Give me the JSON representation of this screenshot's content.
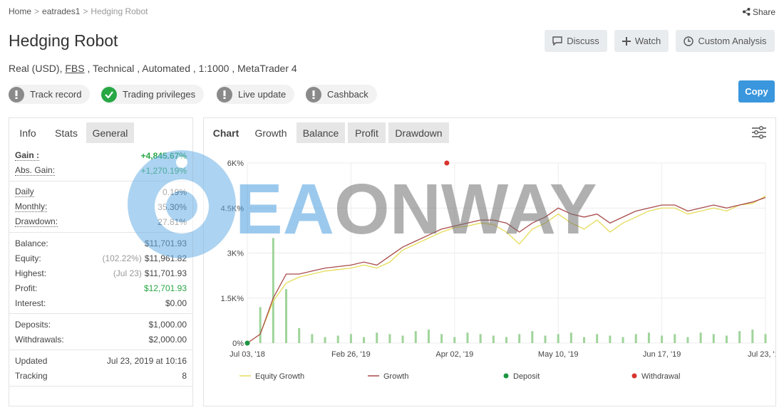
{
  "breadcrumb": {
    "items": [
      "Home",
      "eatrades1",
      "Hedging Robot"
    ],
    "separator": ">"
  },
  "share": "Share",
  "title": "Hedging Robot",
  "buttons": [
    "Discuss",
    "Watch",
    "Custom Analysis"
  ],
  "copy": "Copy",
  "account_info": {
    "prefix": "Real (USD),",
    "broker": "FBS",
    "suffix": ", Technical , Automated , 1:1000 , MetaTrader 4"
  },
  "badges": [
    {
      "label": "Track record",
      "ok": false
    },
    {
      "label": "Trading privileges",
      "ok": true
    },
    {
      "label": "Live update",
      "ok": false
    },
    {
      "label": "Cashback",
      "ok": false
    }
  ],
  "left_tabs": {
    "items": [
      "Info",
      "Stats",
      "General"
    ],
    "active": 1
  },
  "stats": [
    [
      {
        "label": "Gain :",
        "value": "+4,845.67%",
        "color": "#28a745",
        "bold": true
      },
      {
        "label": "Abs. Gain:",
        "value": "+1,270.19%",
        "color": "#28a745"
      }
    ],
    [
      {
        "label": "Daily",
        "value": "0.19%"
      },
      {
        "label": "Monthly:",
        "value": "35.30%"
      },
      {
        "label": "Drawdown:",
        "value": "27.81%"
      }
    ],
    [
      {
        "label": "Balance:",
        "value": "$11,701.93"
      },
      {
        "label": "Equity:",
        "note": "(102.22%)",
        "value": "$11,961.82"
      },
      {
        "label": "Highest:",
        "note": "(Jul 23)",
        "value": "$11,701.93"
      },
      {
        "label": "Profit:",
        "value": "$12,701.93",
        "color": "#28a745"
      },
      {
        "label": "Interest:",
        "value": "$0.00"
      }
    ],
    [
      {
        "label": "Deposits:",
        "value": "$1,000.00"
      },
      {
        "label": "Withdrawals:",
        "value": "$2,000.00"
      }
    ],
    [
      {
        "label": "Updated",
        "value": "Jul 23, 2019 at 10:16"
      },
      {
        "label": "Tracking",
        "value": "8"
      }
    ]
  ],
  "chart_label": "Chart",
  "chart_tabs": {
    "items": [
      "Growth",
      "Balance",
      "Profit",
      "Drawdown"
    ],
    "active": 0
  },
  "watermark": {
    "part1": "EA",
    "part2": "ONWAY"
  },
  "chart_data": {
    "type": "line",
    "x": [
      0,
      2.5,
      5,
      7.5,
      10,
      12.5,
      15,
      17.5,
      20,
      22.5,
      25,
      27.5,
      30,
      32.5,
      35,
      37.5,
      40,
      42.5,
      45,
      47.5,
      50,
      52.5,
      55,
      57.5,
      60,
      62.5,
      65,
      67.5,
      70,
      72.5,
      75,
      77.5,
      80,
      82.5,
      85,
      87.5,
      90,
      92.5,
      95,
      97.5,
      100
    ],
    "xlim": [
      0,
      100
    ],
    "xticks": [
      {
        "value": 0,
        "label": "Jul 03, '18"
      },
      {
        "value": 20,
        "label": "Feb 26, '19"
      },
      {
        "value": 40,
        "label": "Apr 02, '19"
      },
      {
        "value": 60,
        "label": "May 10, '19"
      },
      {
        "value": 80,
        "label": "Jun 17, '19"
      },
      {
        "value": 100,
        "label": "Jul 23, '19"
      }
    ],
    "ylim": [
      0,
      6000
    ],
    "yticks": [
      {
        "value": 0,
        "label": "0%"
      },
      {
        "value": 1500,
        "label": "1.5K%"
      },
      {
        "value": 3000,
        "label": "3K%"
      },
      {
        "value": 4500,
        "label": "4.5K%"
      },
      {
        "value": 6000,
        "label": "6K%"
      }
    ],
    "grid": true,
    "bars": {
      "color": "#9fd49a",
      "values": [
        0,
        1200,
        3500,
        1800,
        500,
        300,
        200,
        250,
        300,
        200,
        350,
        300,
        250,
        400,
        450,
        300,
        200,
        350,
        300,
        250,
        200,
        300,
        400,
        250,
        300,
        350,
        200,
        300,
        250,
        200,
        300,
        350,
        250,
        300,
        200,
        350,
        300,
        250,
        400,
        450,
        300
      ]
    },
    "series": [
      {
        "name": "Equity Growth",
        "color": "#e6dc5a",
        "values": [
          0,
          300,
          1400,
          2000,
          2200,
          2300,
          2400,
          2450,
          2500,
          2600,
          2500,
          2700,
          3100,
          3300,
          3500,
          3700,
          3850,
          3900,
          4000,
          3950,
          3700,
          3300,
          3800,
          4000,
          4300,
          4000,
          3800,
          4100,
          3700,
          4000,
          4200,
          4400,
          4500,
          4500,
          4300,
          4400,
          4500,
          4400,
          4600,
          4650,
          4900
        ]
      },
      {
        "name": "Growth",
        "color": "#a84b4b",
        "values": [
          0,
          300,
          1500,
          2300,
          2300,
          2400,
          2500,
          2550,
          2600,
          2700,
          2600,
          2900,
          3200,
          3400,
          3600,
          3800,
          3900,
          4000,
          4100,
          4100,
          4000,
          3700,
          4000,
          4200,
          4500,
          4300,
          4200,
          4300,
          4000,
          4200,
          4400,
          4500,
          4600,
          4600,
          4400,
          4500,
          4600,
          4500,
          4600,
          4700,
          4850
        ]
      },
      {
        "name": "Deposit",
        "color": "#1a9641",
        "type": "scatter",
        "x": [
          0
        ],
        "values": [
          0
        ]
      },
      {
        "name": "Withdrawal",
        "color": "#d7342f",
        "type": "scatter",
        "x": [
          38.5
        ],
        "values": [
          6000
        ]
      }
    ]
  }
}
